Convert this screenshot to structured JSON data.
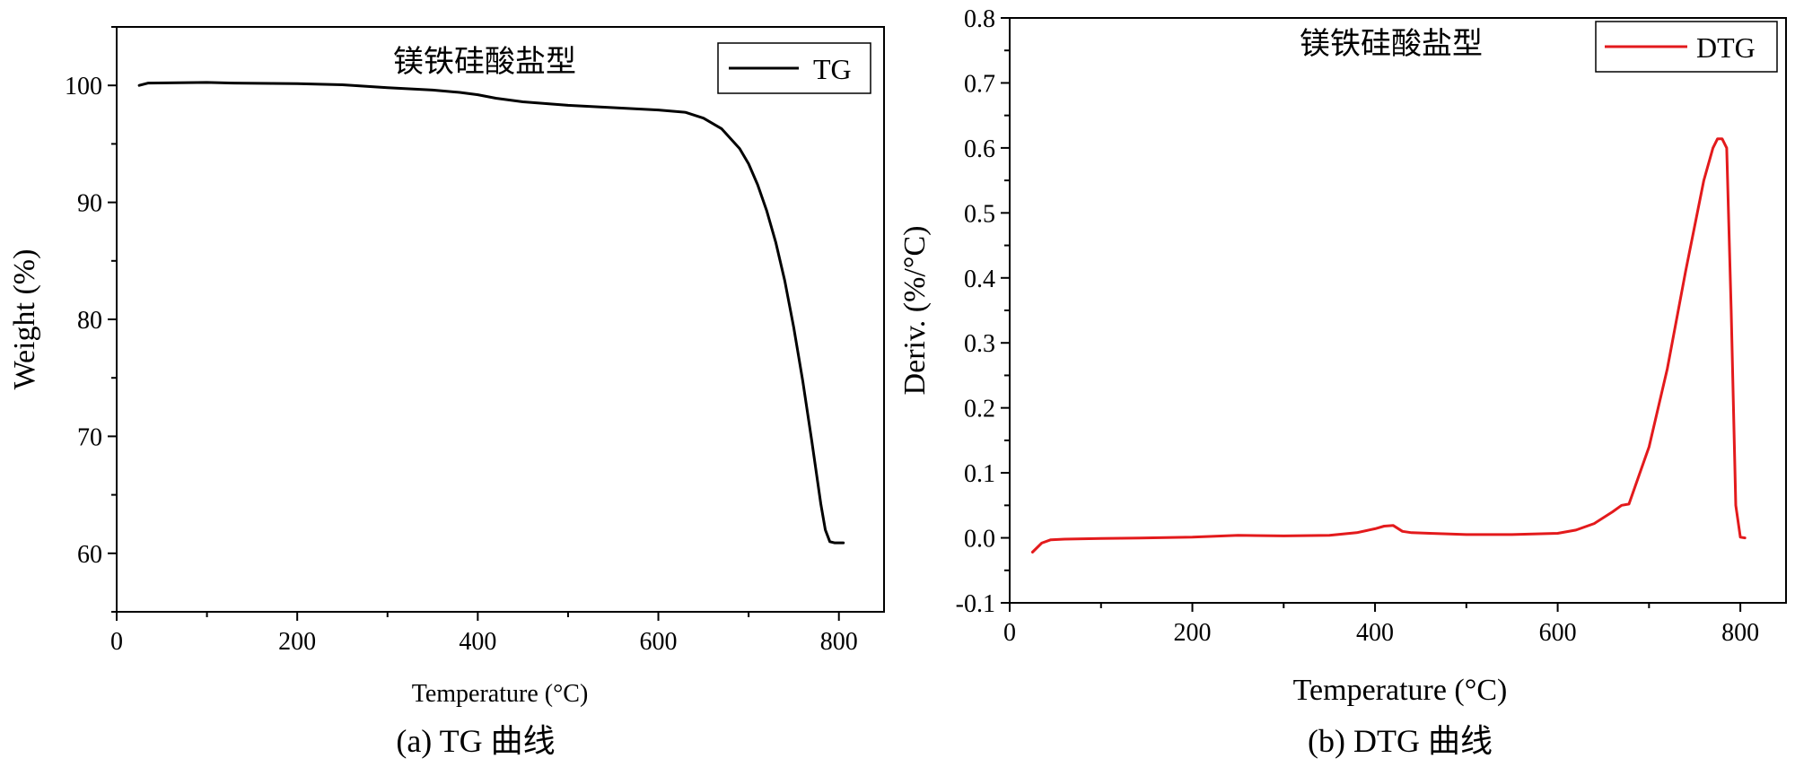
{
  "chart_data": [
    {
      "type": "line",
      "caption": "(a) TG 曲线",
      "annotation": "镁铁硅酸盐型",
      "xlabel": "Temperature (°C)",
      "ylabel": "Weight (%)",
      "xlim": [
        0,
        850
      ],
      "ylim": [
        55,
        105
      ],
      "xticks": [
        0,
        200,
        400,
        600,
        800
      ],
      "yticks": [
        60,
        70,
        80,
        90,
        100
      ],
      "legend": "top-right",
      "grid": false,
      "series": [
        {
          "name": "TG",
          "color": "#000000",
          "x": [
            25,
            35,
            100,
            130,
            200,
            250,
            300,
            350,
            380,
            400,
            420,
            450,
            500,
            550,
            600,
            630,
            650,
            670,
            690,
            700,
            710,
            720,
            730,
            740,
            750,
            760,
            770,
            780,
            785,
            790,
            795,
            800,
            805
          ],
          "y": [
            100.0,
            100.2,
            100.25,
            100.2,
            100.15,
            100.05,
            99.8,
            99.6,
            99.4,
            99.2,
            98.9,
            98.6,
            98.3,
            98.1,
            97.9,
            97.7,
            97.2,
            96.3,
            94.6,
            93.3,
            91.5,
            89.3,
            86.6,
            83.3,
            79.3,
            74.7,
            69.6,
            64.2,
            62.0,
            61.0,
            60.9,
            60.9,
            60.9
          ]
        }
      ]
    },
    {
      "type": "line",
      "caption": "(b) DTG 曲线",
      "annotation": "镁铁硅酸盐型",
      "xlabel": "Temperature (°C)",
      "ylabel": "Deriv. (%/°C)",
      "xlim": [
        0,
        850
      ],
      "ylim": [
        -0.1,
        0.8
      ],
      "xticks": [
        0,
        200,
        400,
        600,
        800
      ],
      "yticks": [
        -0.1,
        0.0,
        0.1,
        0.2,
        0.3,
        0.4,
        0.5,
        0.6,
        0.7,
        0.8
      ],
      "legend": "top-right",
      "grid": false,
      "series": [
        {
          "name": "DTG",
          "color": "#e31a1c",
          "x": [
            25,
            35,
            45,
            60,
            100,
            150,
            200,
            250,
            300,
            350,
            380,
            400,
            410,
            420,
            430,
            440,
            460,
            500,
            550,
            600,
            620,
            640,
            660,
            670,
            678,
            685,
            700,
            720,
            740,
            760,
            770,
            775,
            780,
            785,
            790,
            795,
            800,
            805
          ],
          "y": [
            -0.022,
            -0.008,
            -0.003,
            -0.002,
            -0.001,
            0.0,
            0.001,
            0.004,
            0.003,
            0.004,
            0.008,
            0.014,
            0.018,
            0.019,
            0.01,
            0.008,
            0.007,
            0.005,
            0.005,
            0.007,
            0.012,
            0.022,
            0.04,
            0.05,
            0.052,
            0.08,
            0.14,
            0.26,
            0.41,
            0.55,
            0.6,
            0.614,
            0.614,
            0.6,
            0.35,
            0.05,
            0.001,
            0.0
          ]
        }
      ]
    }
  ]
}
